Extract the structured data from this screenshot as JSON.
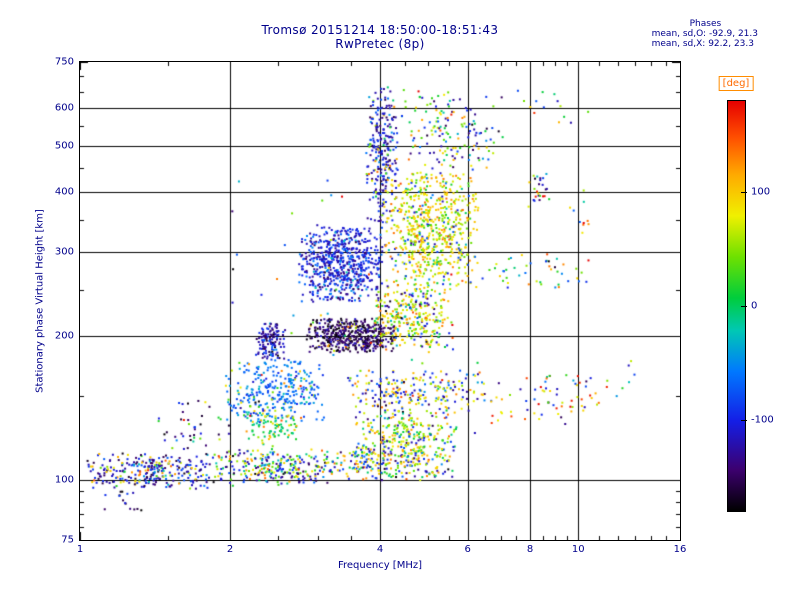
{
  "header": {
    "title_line1": "Tromsø 20151214 18:50:00-18:51:43",
    "title_line2": "RwPretec (8p)",
    "phases": {
      "title": "Phases",
      "line_o": "mean, sd,O: -92.9, 21.3",
      "line_x": "mean, sd,X:  92.2, 23.3"
    }
  },
  "colors": {
    "text": "#00008b",
    "axis": "#000000",
    "deg_label": "#ff6a00",
    "background": "#ffffff"
  },
  "chart_data": {
    "type": "scatter",
    "title": "Tromsø 20151214 18:50:00-18:51:43",
    "subtitle": "RwPretec (8p)",
    "xlabel": "Frequency [MHz]",
    "ylabel": "Stationary phase Virtual Height [km]",
    "x_scale": "log",
    "y_scale": "log",
    "xlim": [
      1,
      16
    ],
    "ylim": [
      75,
      750
    ],
    "x_ticks": [
      1,
      2,
      4,
      6,
      8,
      10,
      16
    ],
    "x_minor_ticks": [
      1.5,
      2.5,
      3,
      3.5,
      4.5,
      5,
      5.5,
      6.5,
      7,
      7.5,
      8.5,
      9,
      9.5,
      11,
      12,
      13,
      14,
      15
    ],
    "y_ticks": [
      75,
      100,
      200,
      300,
      400,
      500,
      600,
      750
    ],
    "y_minor_ticks": [
      80,
      85,
      90,
      95,
      150,
      250,
      350,
      450,
      550,
      650,
      700
    ],
    "x_gridlines": [
      2,
      4,
      6,
      8,
      10
    ],
    "y_gridlines": [
      100,
      200,
      300,
      400,
      500,
      600
    ],
    "grid": true,
    "legend_position": "right-colorbar",
    "colorbar": {
      "label": "[deg]",
      "ticks": [
        100,
        0,
        -100
      ],
      "range": [
        -180,
        180
      ],
      "stops": [
        [
          0.0,
          "#000000"
        ],
        [
          0.1,
          "#3c006e"
        ],
        [
          0.22,
          "#141ee6"
        ],
        [
          0.34,
          "#0078ff"
        ],
        [
          0.44,
          "#00c8b4"
        ],
        [
          0.52,
          "#00cd3c"
        ],
        [
          0.62,
          "#6ee100"
        ],
        [
          0.72,
          "#f0f000"
        ],
        [
          0.82,
          "#ffaa00"
        ],
        [
          0.91,
          "#ff5000"
        ],
        [
          1.0,
          "#e60000"
        ]
      ]
    },
    "marker": {
      "size": 2,
      "shape": "square"
    },
    "seed": 7,
    "point_clusters": [
      {
        "f": [
          1.03,
          1.95
        ],
        "h": [
          96,
          114
        ],
        "n": 300,
        "deg_modes": [
          [
            -120,
            30,
            0.72
          ],
          [
            -40,
            30,
            0.1
          ],
          [
            90,
            40,
            0.18
          ]
        ]
      },
      {
        "f": [
          1.08,
          1.35
        ],
        "h": [
          84,
          96
        ],
        "n": 15,
        "deg_modes": [
          [
            -140,
            25,
            1.0
          ]
        ]
      },
      {
        "f": [
          1.4,
          2.0
        ],
        "h": [
          112,
          152
        ],
        "n": 45,
        "deg_modes": [
          [
            -120,
            40,
            0.8
          ],
          [
            60,
            50,
            0.2
          ]
        ]
      },
      {
        "f": [
          1.9,
          3.2
        ],
        "h": [
          97,
          116
        ],
        "n": 260,
        "deg_modes": [
          [
            -110,
            30,
            0.5
          ],
          [
            80,
            40,
            0.3
          ],
          [
            0,
            30,
            0.2
          ]
        ]
      },
      {
        "f": [
          3.2,
          5.6
        ],
        "h": [
          100,
          118
        ],
        "n": 260,
        "deg_modes": [
          [
            90,
            30,
            0.45
          ],
          [
            -100,
            30,
            0.35
          ],
          [
            10,
            30,
            0.2
          ]
        ]
      },
      {
        "f": [
          2.15,
          2.75
        ],
        "h": [
          116,
          144
        ],
        "n": 90,
        "deg_modes": [
          [
            0,
            15,
            0.75
          ],
          [
            80,
            30,
            0.25
          ]
        ]
      },
      {
        "f": [
          1.95,
          3.1
        ],
        "h": [
          132,
          180
        ],
        "n": 300,
        "deg_modes": [
          [
            -65,
            22,
            0.88
          ],
          [
            70,
            40,
            0.12
          ]
        ]
      },
      {
        "f": [
          2.25,
          2.6
        ],
        "h": [
          178,
          214
        ],
        "n": 130,
        "deg_modes": [
          [
            -120,
            30,
            1.0
          ]
        ]
      },
      {
        "f": [
          2.85,
          4.3
        ],
        "h": [
          185,
          218
        ],
        "n": 460,
        "deg_modes": [
          [
            -150,
            20,
            0.92
          ],
          [
            100,
            30,
            0.08
          ]
        ]
      },
      {
        "f": [
          2.75,
          4.05
        ],
        "h": [
          236,
          338
        ],
        "n": 620,
        "deg_modes": [
          [
            -108,
            20,
            0.85
          ],
          [
            -60,
            15,
            0.15
          ]
        ]
      },
      {
        "f": [
          3.75,
          4.35
        ],
        "h": [
          330,
          665
        ],
        "n": 260,
        "deg_modes": [
          [
            -112,
            25,
            0.8
          ],
          [
            0,
            40,
            0.1
          ],
          [
            90,
            40,
            0.1
          ]
        ]
      },
      {
        "f": [
          4.1,
          6.3
        ],
        "h": [
          248,
          438
        ],
        "n": 650,
        "deg_modes": [
          [
            85,
            28,
            0.74
          ],
          [
            30,
            25,
            0.16
          ],
          [
            -90,
            30,
            0.1
          ]
        ]
      },
      {
        "f": [
          3.9,
          5.6
        ],
        "h": [
          190,
          252
        ],
        "n": 300,
        "deg_modes": [
          [
            85,
            30,
            0.68
          ],
          [
            0,
            30,
            0.16
          ],
          [
            -115,
            30,
            0.16
          ]
        ]
      },
      {
        "f": [
          3.4,
          6.6
        ],
        "h": [
          138,
          170
        ],
        "n": 230,
        "deg_modes": [
          [
            -100,
            30,
            0.5
          ],
          [
            85,
            30,
            0.5
          ]
        ]
      },
      {
        "f": [
          3.5,
          5.7
        ],
        "h": [
          112,
          140
        ],
        "n": 230,
        "deg_modes": [
          [
            80,
            30,
            0.58
          ],
          [
            -100,
            30,
            0.22
          ],
          [
            10,
            25,
            0.2
          ]
        ]
      },
      {
        "f": [
          6.6,
          11.5
        ],
        "h": [
          130,
          168
        ],
        "n": 70,
        "deg_modes": [
          [
            -100,
            40,
            0.4
          ],
          [
            85,
            40,
            0.4
          ],
          [
            160,
            15,
            0.2
          ]
        ]
      },
      {
        "f": [
          6.2,
          10.5
        ],
        "h": [
          252,
          300
        ],
        "n": 45,
        "deg_modes": [
          [
            -100,
            40,
            0.4
          ],
          [
            60,
            50,
            0.6
          ]
        ]
      },
      {
        "f": [
          4.4,
          7.2
        ],
        "h": [
          428,
          660
        ],
        "n": 160,
        "deg_modes": [
          [
            -110,
            30,
            0.45
          ],
          [
            85,
            40,
            0.35
          ],
          [
            0,
            30,
            0.2
          ]
        ]
      },
      {
        "f": [
          7.3,
          10.5
        ],
        "h": [
          555,
          655
        ],
        "n": 14,
        "deg_modes": [
          [
            90,
            50,
            0.5
          ],
          [
            -100,
            50,
            0.5
          ]
        ]
      },
      {
        "f": [
          7.8,
          8.8
        ],
        "h": [
          372,
          438
        ],
        "n": 25,
        "deg_modes": [
          [
            90,
            60,
            0.5
          ],
          [
            -110,
            40,
            0.5
          ]
        ]
      },
      {
        "f": [
          9.5,
          11.2
        ],
        "h": [
          325,
          405
        ],
        "n": 10,
        "deg_modes": [
          [
            60,
            60,
            0.6
          ],
          [
            -100,
            40,
            0.4
          ]
        ]
      },
      {
        "f": [
          11.5,
          13.2
        ],
        "h": [
          148,
          178
        ],
        "n": 6,
        "deg_modes": [
          [
            80,
            60,
            0.5
          ],
          [
            -110,
            40,
            0.5
          ]
        ]
      },
      {
        "f": [
          2.0,
          6.4
        ],
        "h": [
          116,
          470
        ],
        "n": 70,
        "deg_modes": [
          [
            -80,
            60,
            0.5
          ],
          [
            60,
            60,
            0.5
          ]
        ]
      }
    ]
  }
}
